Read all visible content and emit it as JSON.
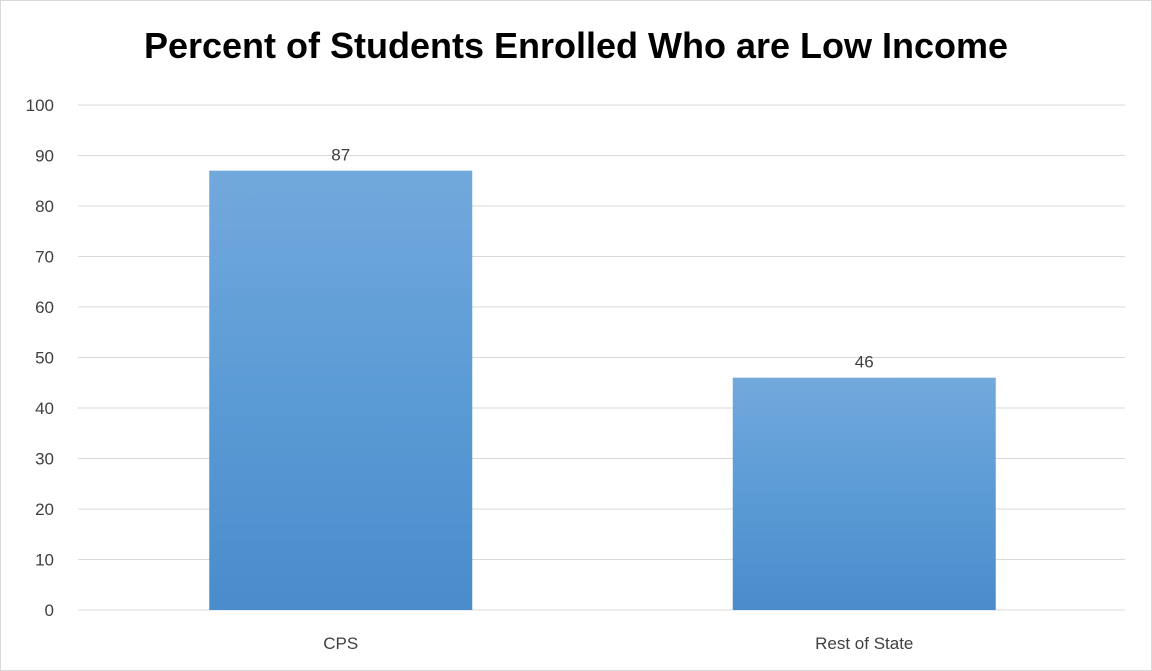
{
  "chart_data": {
    "type": "bar",
    "title": "Percent of Students Enrolled Who are Low Income",
    "categories": [
      "CPS",
      "Rest of State"
    ],
    "values": [
      87,
      46
    ],
    "data_labels": [
      "87",
      "46"
    ],
    "xlabel": "",
    "ylabel": "",
    "ylim": [
      0,
      100
    ],
    "y_ticks": [
      "0",
      "10",
      "20",
      "30",
      "40",
      "50",
      "60",
      "70",
      "80",
      "90",
      "100"
    ],
    "grid": true,
    "legend": "none",
    "bar_color": "#5b9bd5",
    "bar_color_light": "#72a9dd",
    "bar_color_dark": "#4a8ccc",
    "gridline_color": "#d9d9d9"
  }
}
